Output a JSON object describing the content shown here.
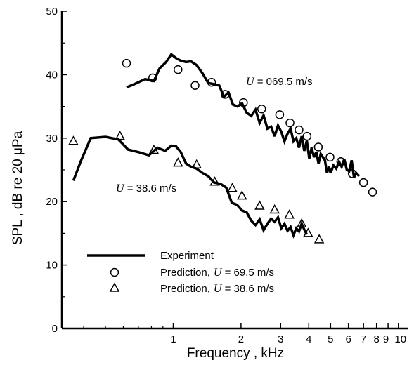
{
  "chart_data": {
    "type": "line",
    "title": "",
    "xlabel": "Frequency , kHz",
    "ylabel": "SPL , dB re 20 μPa",
    "x_scale": "log",
    "xlim": [
      0.32,
      11.0
    ],
    "ylim": [
      0,
      50
    ],
    "x_ticks": [
      {
        "value": 1,
        "label": "1"
      },
      {
        "value": 2,
        "label": "2"
      },
      {
        "value": 3,
        "label": "3"
      },
      {
        "value": 4,
        "label": "4"
      },
      {
        "value": 5,
        "label": "5"
      },
      {
        "value": 6,
        "label": "6"
      },
      {
        "value": 7,
        "label": "7"
      },
      {
        "value": 8,
        "label": "8"
      },
      {
        "value": 9,
        "label": "9"
      },
      {
        "value": 10,
        "label": "10"
      }
    ],
    "x_minor_ticks": [
      0.4,
      0.5,
      0.6,
      0.7,
      0.8,
      0.9
    ],
    "y_ticks": [
      0,
      10,
      20,
      30,
      40,
      50
    ],
    "grid": false,
    "annotations": [
      {
        "italic": "U",
        "text": " = 069.5 m/s",
        "x": 2.05,
        "y": 37.5
      },
      {
        "italic": "U",
        "text": " = 38.6 m/s",
        "x": 0.52,
        "y": 21.0
      }
    ],
    "legend": {
      "placement": "lower-left",
      "entries": [
        {
          "label": "Experiment",
          "marker": "line"
        },
        {
          "label": "Prediction,",
          "italic": "U",
          "suffix": " = 69.5 m/s",
          "marker": "circle"
        },
        {
          "label": "Prediction,",
          "italic": "U",
          "suffix": " = 38.6 m/s",
          "marker": "triangle"
        }
      ]
    },
    "series": [
      {
        "name": "Experiment",
        "kind": "line",
        "label_ref": "U = 69.5 m/s",
        "x": [
          0.62,
          0.68,
          0.75,
          0.82,
          0.87,
          0.93,
          0.98,
          1.03,
          1.08,
          1.14,
          1.2,
          1.27,
          1.35,
          1.43,
          1.52,
          1.6,
          1.68,
          1.76,
          1.84,
          1.93,
          2.02,
          2.12,
          2.22,
          2.32,
          2.42,
          2.52,
          2.62,
          2.72,
          2.82,
          2.92,
          3.02,
          3.12,
          3.22,
          3.32,
          3.42,
          3.52,
          3.62,
          3.72,
          3.82,
          3.92,
          4.02,
          4.12,
          4.22,
          4.32,
          4.42,
          4.52,
          4.62,
          4.72,
          4.82,
          4.92,
          5.0,
          5.15,
          5.3,
          5.45,
          5.6,
          5.75,
          5.9,
          6.05,
          6.2,
          6.35,
          6.5,
          6.7
        ],
        "y": [
          38.0,
          38.6,
          39.3,
          39.0,
          41.0,
          42.0,
          43.2,
          42.6,
          42.2,
          42.0,
          42.1,
          41.5,
          40.2,
          38.7,
          38.5,
          38.3,
          36.5,
          37.2,
          35.3,
          35.0,
          35.5,
          34.0,
          33.5,
          34.5,
          32.4,
          33.6,
          31.5,
          31.8,
          30.3,
          32.0,
          31.0,
          29.5,
          30.7,
          31.5,
          29.5,
          30.0,
          28.5,
          30.3,
          28.0,
          29.6,
          26.8,
          28.5,
          27.0,
          27.8,
          26.0,
          27.5,
          27.0,
          26.5,
          24.5,
          25.5,
          24.5,
          25.7,
          25.2,
          26.3,
          25.5,
          26.7,
          25.0,
          24.8,
          26.5,
          23.8,
          24.5,
          24.0
        ]
      },
      {
        "name": "Experiment",
        "kind": "line",
        "label_ref": "U = 38.6 m/s",
        "x": [
          0.36,
          0.39,
          0.43,
          0.5,
          0.57,
          0.63,
          0.7,
          0.78,
          0.85,
          0.92,
          0.98,
          1.03,
          1.08,
          1.14,
          1.2,
          1.27,
          1.35,
          1.43,
          1.52,
          1.62,
          1.72,
          1.82,
          1.92,
          2.02,
          2.12,
          2.22,
          2.32,
          2.42,
          2.52,
          2.62,
          2.72,
          2.82,
          2.92,
          3.02,
          3.12,
          3.22,
          3.32,
          3.42,
          3.52,
          3.62,
          3.72,
          3.82,
          3.92
        ],
        "y": [
          23.3,
          26.5,
          30.0,
          30.2,
          29.8,
          28.2,
          27.8,
          27.3,
          28.5,
          28.0,
          28.8,
          28.7,
          27.8,
          26.0,
          25.5,
          25.2,
          24.5,
          24.0,
          23.0,
          22.8,
          22.2,
          19.8,
          19.5,
          18.6,
          18.3,
          17.0,
          16.3,
          17.2,
          15.5,
          16.5,
          17.3,
          16.8,
          17.5,
          15.8,
          16.5,
          15.4,
          16.0,
          14.7,
          15.8,
          15.3,
          16.5,
          15.6,
          14.8
        ]
      },
      {
        "name": "Prediction, U = 69.5 m/s",
        "kind": "circle",
        "x": [
          0.62,
          0.81,
          1.05,
          1.25,
          1.48,
          1.7,
          2.05,
          2.47,
          2.97,
          3.3,
          3.62,
          3.93,
          4.41,
          4.97,
          5.55,
          6.24,
          7.0,
          7.68
        ],
        "y": [
          41.8,
          39.5,
          40.8,
          38.3,
          38.8,
          36.9,
          35.6,
          34.6,
          33.7,
          32.4,
          31.3,
          30.3,
          28.6,
          27.0,
          26.3,
          24.4,
          23.0,
          21.5
        ]
      },
      {
        "name": "Prediction, U = 38.6 m/s",
        "kind": "triangle",
        "x": [
          0.36,
          0.58,
          0.82,
          1.05,
          1.27,
          1.53,
          1.83,
          2.02,
          2.42,
          2.82,
          3.28,
          3.72,
          3.97,
          4.45
        ],
        "y": [
          29.5,
          30.3,
          28.1,
          26.1,
          25.8,
          23.1,
          22.1,
          20.9,
          19.3,
          18.7,
          17.9,
          16.5,
          15.0,
          14.0
        ]
      }
    ]
  }
}
